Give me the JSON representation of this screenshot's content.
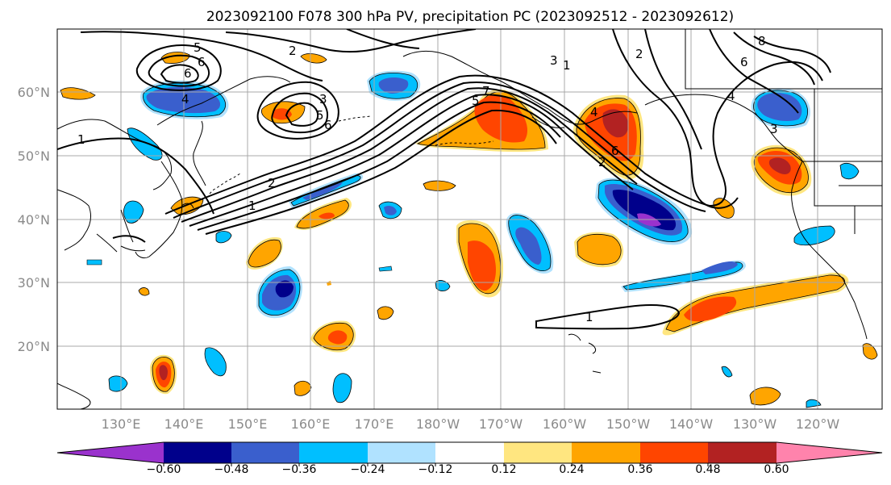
{
  "map": {
    "title": "2023092100 F078 300 hPa PV, precipitation PC (2023092512 - 2023092612)",
    "lat_labels": [
      "60°N",
      "50°N",
      "40°N",
      "30°N",
      "20°N"
    ],
    "lon_labels": [
      "130°E",
      "140°E",
      "150°E",
      "160°E",
      "170°E",
      "180°W",
      "170°W",
      "160°W",
      "150°W",
      "140°W",
      "130°W",
      "120°W"
    ],
    "colorbar": {
      "ticks": [
        "−0.60",
        "−0.48",
        "−0.36",
        "−0.24",
        "−0.12",
        "0.12",
        "0.24",
        "0.36",
        "0.48",
        "0.60"
      ],
      "colors": [
        "#9a32cd",
        "#00008b",
        "#3a5fcd",
        "#00bfff",
        "#b0e2ff",
        "#ffffff",
        "#ffe680",
        "#ffa500",
        "#ff4500",
        "#b22222",
        "#ff83ac"
      ]
    },
    "contour_labels": [
      "5",
      "6",
      "2",
      "6",
      "4",
      "1",
      "3",
      "5",
      "6",
      "2",
      "1",
      "5",
      "7",
      "3",
      "1",
      "2",
      "8",
      "6",
      "4",
      "3",
      "6",
      "4",
      "2",
      "1"
    ],
    "shading_colors": {
      "light_blue": "#b0e2ff",
      "blue": "#00bfff",
      "mid_blue": "#3a5fcd",
      "navy": "#00008b",
      "purple": "#9a32cd",
      "yellow": "#ffe680",
      "orange": "#ffa500",
      "red_orange": "#ff4500",
      "dark_red": "#b22222"
    }
  }
}
